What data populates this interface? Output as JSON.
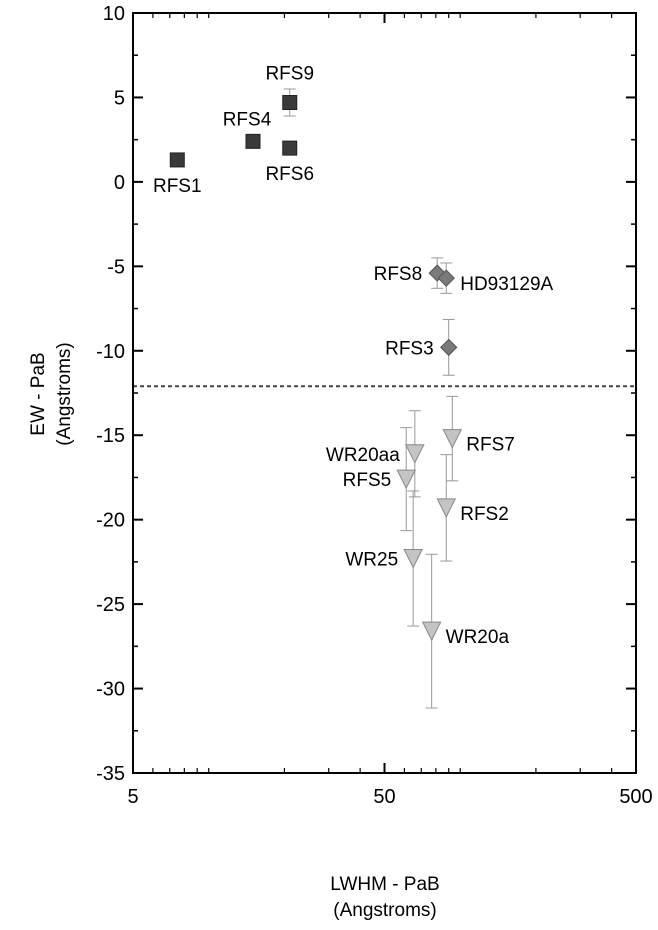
{
  "chart_data": {
    "type": "scatter",
    "title": "",
    "xlabel_line1": "LWHM - PaB",
    "xlabel_line2": "(Angstroms)",
    "ylabel_line1": "EW - PaB",
    "ylabel_line2": "(Angstroms)",
    "x_scale": "log",
    "xlim": [
      5,
      500
    ],
    "ylim": [
      -35,
      10
    ],
    "x_ticks": [
      5,
      50,
      500
    ],
    "x_tick_labels": [
      "5",
      "50",
      "500"
    ],
    "y_ticks": [
      10,
      5,
      0,
      -5,
      -10,
      -15,
      -20,
      -25,
      -30,
      -35
    ],
    "y_tick_labels": [
      "10",
      "5",
      "0",
      "-5",
      "-10",
      "-15",
      "-20",
      "-25",
      "-30",
      "-35"
    ],
    "grid": false,
    "legend": "none",
    "reference_line": {
      "y": -12.1,
      "style": "dashed"
    },
    "series": [
      {
        "marker": "square",
        "color": "#3a3a3a",
        "points": [
          {
            "label": "RFS1",
            "x": 7.5,
            "y": 1.3,
            "err": 0,
            "label_pos": "below"
          },
          {
            "label": "RFS4",
            "x": 15.0,
            "y": 2.4,
            "err": 0,
            "label_pos": "above-left"
          },
          {
            "label": "RFS9",
            "x": 21.0,
            "y": 4.7,
            "err": 0.8,
            "label_pos": "above"
          },
          {
            "label": "RFS6",
            "x": 21.0,
            "y": 2.0,
            "err": 0,
            "label_pos": "below"
          }
        ]
      },
      {
        "marker": "diamond",
        "color": "#7a7a7a",
        "points": [
          {
            "label": "RFS8",
            "x": 81.0,
            "y": -5.4,
            "err": 0.9,
            "label_pos": "left"
          },
          {
            "label": "HD93129A",
            "x": 88.0,
            "y": -5.7,
            "err": 0.9,
            "label_pos": "right"
          },
          {
            "label": "RFS3",
            "x": 90.0,
            "y": -9.8,
            "err": 1.65,
            "label_pos": "left"
          }
        ]
      },
      {
        "marker": "triangle-down",
        "color": "#c4c4c4",
        "points": [
          {
            "label": "WR20aa",
            "x": 66.0,
            "y": -16.1,
            "err": 2.55,
            "label_pos": "left"
          },
          {
            "label": "RFS7",
            "x": 93.0,
            "y": -15.2,
            "err": 2.5,
            "label_pos": "right"
          },
          {
            "label": "RFS5",
            "x": 61.0,
            "y": -17.6,
            "err": 3.05,
            "label_pos": "left"
          },
          {
            "label": "RFS2",
            "x": 88.0,
            "y": -19.3,
            "err": 3.15,
            "label_pos": "right"
          },
          {
            "label": "WR25",
            "x": 65.0,
            "y": -22.3,
            "err": 4.0,
            "label_pos": "left"
          },
          {
            "label": "WR20a",
            "x": 77.0,
            "y": -26.6,
            "err": 4.55,
            "label_pos": "right"
          }
        ]
      }
    ]
  }
}
